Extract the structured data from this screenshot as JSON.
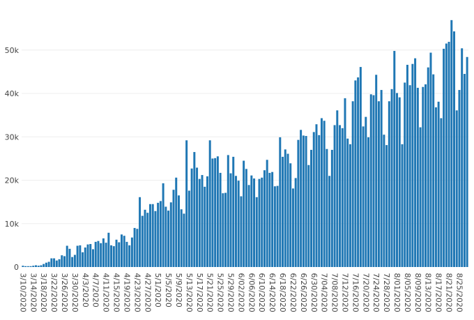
{
  "chart_data": {
    "type": "bar",
    "title": "",
    "xlabel": "",
    "ylabel": "",
    "ylim": [
      0,
      58000
    ],
    "yticks": [
      0,
      10000,
      20000,
      30000,
      40000,
      50000
    ],
    "ytick_labels": [
      "0",
      "10k",
      "20k",
      "30k",
      "40k",
      "50k"
    ],
    "grid": "horizontal",
    "legend": "none",
    "bar_color": "#1f77b4",
    "start_date": "2020-03-10",
    "xtick_labels": [
      "3/10/2020",
      "3/14/2020",
      "3/18/2020",
      "3/22/2020",
      "3/26/2020",
      "3/30/2020",
      "4/3/2020",
      "4/7/2020",
      "4/11/2020",
      "4/15/2020",
      "4/19/2020",
      "4/23/2020",
      "4/27/2020",
      "5/1/2020",
      "5/5/2020",
      "5/9/2020",
      "5/13/2020",
      "5/17/2020",
      "5/21/2020",
      "5/25/2020",
      "5/29/2020",
      "6/02/2020",
      "6/06/2020",
      "6/10/2020",
      "6/14/2020",
      "6/18/2020",
      "6/22/2020",
      "6/26/2020",
      "6/30/2020",
      "7/04/2020",
      "7/08/2020",
      "7/12/2020",
      "7/16/2020",
      "7/20/2020",
      "7/24/2020",
      "7/28/2020",
      "8/01/2020",
      "8/05/2020",
      "8/09/2020",
      "8/13/2020",
      "8/17/2020",
      "8/21/2020",
      "8/25/2020"
    ],
    "values": [
      300,
      200,
      200,
      200,
      300,
      400,
      300,
      400,
      700,
      1000,
      1200,
      2000,
      2000,
      1500,
      1800,
      2700,
      2500,
      4900,
      4200,
      2300,
      2800,
      4900,
      5000,
      3400,
      4500,
      5200,
      5300,
      4100,
      5800,
      6000,
      5500,
      6600,
      5600,
      7900,
      5000,
      4800,
      6300,
      5700,
      7500,
      7200,
      5800,
      5000,
      6800,
      9000,
      8800,
      16100,
      11800,
      13200,
      12500,
      14500,
      14500,
      12900,
      14800,
      15200,
      19300,
      13900,
      13000,
      14900,
      17800,
      20600,
      16500,
      13300,
      12300,
      29200,
      17600,
      22700,
      26500,
      22900,
      20300,
      21200,
      18500,
      20900,
      29200,
      25000,
      25100,
      25500,
      21700,
      17000,
      17100,
      25800,
      21600,
      25400,
      21000,
      19900,
      16300,
      24500,
      22600,
      18900,
      21100,
      20400,
      16100,
      20300,
      20600,
      22300,
      24700,
      21700,
      21900,
      18600,
      18700,
      29900,
      25400,
      27100,
      26100,
      23900,
      18100,
      20500,
      29300,
      31600,
      30300,
      30200,
      23500,
      27000,
      31100,
      32900,
      30400,
      34300,
      33700,
      27200,
      21000,
      27000,
      32700,
      36100,
      32700,
      32000,
      38900,
      29600,
      28300,
      38200,
      43000,
      43700,
      46100,
      32400,
      34600,
      29900,
      39800,
      39600,
      44300,
      38200,
      40800,
      30500,
      28100,
      38200,
      41000,
      49800,
      40100,
      39100,
      28300,
      42500,
      46600,
      41900,
      46800,
      48100,
      41300,
      32200,
      41500,
      42100,
      46000,
      49400,
      44400,
      36800,
      38100,
      34300,
      50300,
      51500,
      51900,
      56900,
      54300,
      36100,
      40800,
      50400,
      44500,
      48400
    ]
  }
}
